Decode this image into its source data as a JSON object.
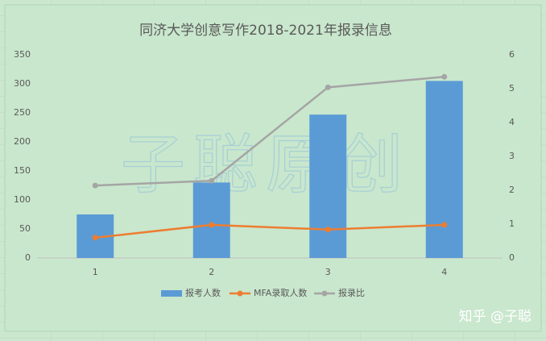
{
  "chart_data": {
    "type": "combo",
    "title": "同济大学创意写作2018-2021年报录信息",
    "categories": [
      "1",
      "2",
      "3",
      "4"
    ],
    "series": [
      {
        "name": "报考人数",
        "kind": "bar",
        "color": "#5b9bd5",
        "values": [
          75,
          130,
          247,
          305
        ]
      },
      {
        "name": "MFA录取人数",
        "kind": "line",
        "color": "#ed7d31",
        "values": [
          35,
          57,
          49,
          57
        ]
      },
      {
        "name": "报录比",
        "kind": "line",
        "axis": "y2",
        "color": "#a5a5a5",
        "values": [
          2.14,
          2.28,
          5.04,
          5.35
        ]
      }
    ],
    "ylim": [
      0,
      350
    ],
    "yticks": [
      0,
      50,
      100,
      150,
      200,
      250,
      300,
      350
    ],
    "y2lim": [
      0,
      6
    ],
    "y2ticks": [
      0,
      1,
      2,
      3,
      4,
      5,
      6
    ],
    "grid": false,
    "legend": "bottom",
    "watermark": "子聪原创",
    "credit": "知乎 @子聪"
  }
}
